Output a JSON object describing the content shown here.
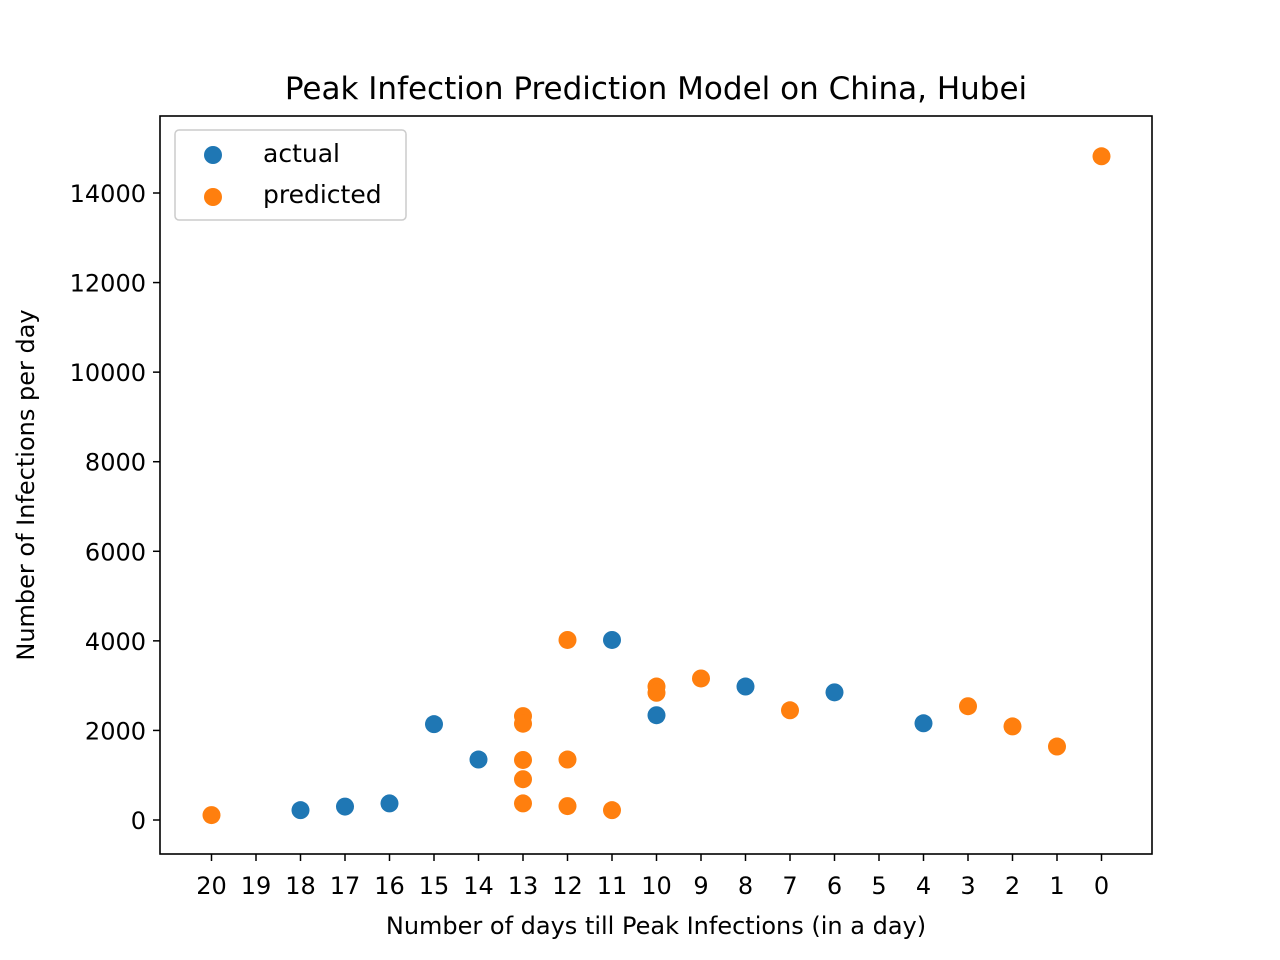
{
  "chart_data": {
    "type": "scatter",
    "title": "Peak Infection Prediction Model on China, Hubei",
    "xlabel": "Number of days till Peak Infections (in a day)",
    "ylabel": "Number of Infections per day",
    "x_tick_labels": [
      "20",
      "19",
      "18",
      "17",
      "16",
      "15",
      "14",
      "13",
      "12",
      "11",
      "10",
      "9",
      "8",
      "7",
      "6",
      "5",
      "4",
      "3",
      "2",
      "1",
      "0"
    ],
    "y_ticks": [
      0,
      2000,
      4000,
      6000,
      8000,
      10000,
      12000,
      14000
    ],
    "ylim": [
      -750,
      15600
    ],
    "x_axis_reversed": true,
    "grid": false,
    "legend_position": "top-left",
    "series": [
      {
        "name": "actual",
        "color": "#1f77b4",
        "points": [
          {
            "x": 18,
            "y": 220
          },
          {
            "x": 17,
            "y": 300
          },
          {
            "x": 16,
            "y": 370
          },
          {
            "x": 15,
            "y": 2140
          },
          {
            "x": 14,
            "y": 1350
          },
          {
            "x": 11,
            "y": 4020
          },
          {
            "x": 10,
            "y": 2340
          },
          {
            "x": 8,
            "y": 2980
          },
          {
            "x": 6,
            "y": 2850
          },
          {
            "x": 4,
            "y": 2160
          }
        ]
      },
      {
        "name": "predicted",
        "color": "#ff7f0e",
        "points": [
          {
            "x": 20,
            "y": 110
          },
          {
            "x": 13,
            "y": 2320
          },
          {
            "x": 13,
            "y": 2150
          },
          {
            "x": 13,
            "y": 1340
          },
          {
            "x": 13,
            "y": 910
          },
          {
            "x": 13,
            "y": 370
          },
          {
            "x": 12,
            "y": 4020
          },
          {
            "x": 12,
            "y": 1350
          },
          {
            "x": 12,
            "y": 310
          },
          {
            "x": 11,
            "y": 220
          },
          {
            "x": 10,
            "y": 2980
          },
          {
            "x": 10,
            "y": 2840
          },
          {
            "x": 9,
            "y": 3160
          },
          {
            "x": 7,
            "y": 2450
          },
          {
            "x": 3,
            "y": 2540
          },
          {
            "x": 2,
            "y": 2090
          },
          {
            "x": 1,
            "y": 1640
          },
          {
            "x": 0,
            "y": 14820
          }
        ]
      }
    ]
  }
}
